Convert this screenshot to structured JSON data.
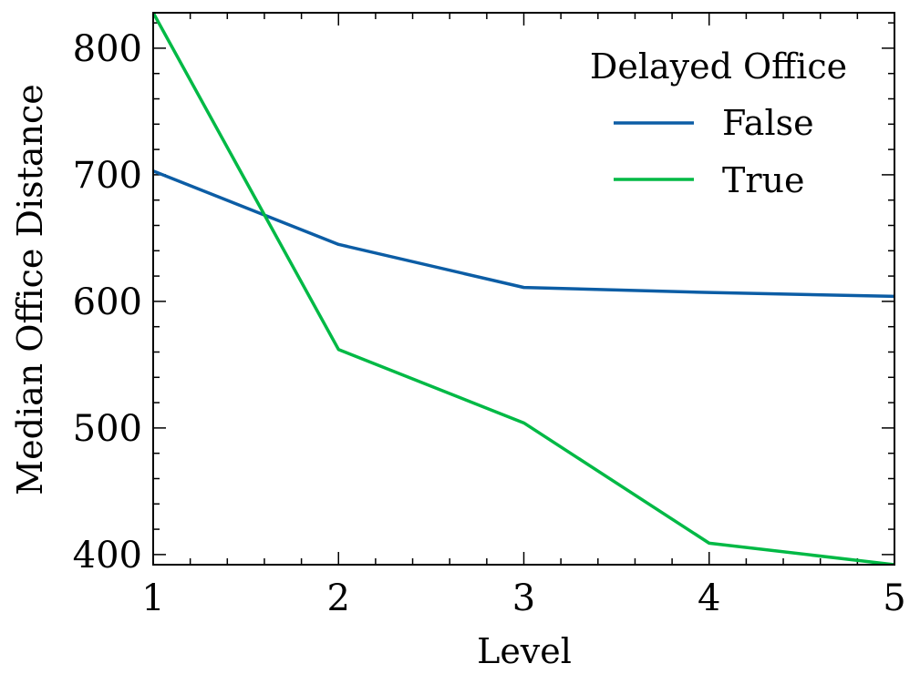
{
  "chart_data": {
    "type": "line",
    "title": "",
    "xlabel": "Level",
    "ylabel": "Median Office Distance",
    "x": [
      1,
      2,
      3,
      4,
      5
    ],
    "xlim": [
      1,
      5
    ],
    "ylim": [
      392,
      828
    ],
    "xticks": [
      "1",
      "2",
      "3",
      "4",
      "5"
    ],
    "yticks": [
      "400",
      "500",
      "600",
      "700",
      "800"
    ],
    "grid": false,
    "legend": {
      "title": "Delayed Office",
      "placement": "top-right"
    },
    "series": [
      {
        "name": "False",
        "color": "#0C5DA5",
        "values": [
          703,
          645,
          611,
          607,
          604
        ]
      },
      {
        "name": "True",
        "color": "#00B945",
        "values": [
          828,
          562,
          504,
          409,
          392
        ]
      }
    ]
  }
}
